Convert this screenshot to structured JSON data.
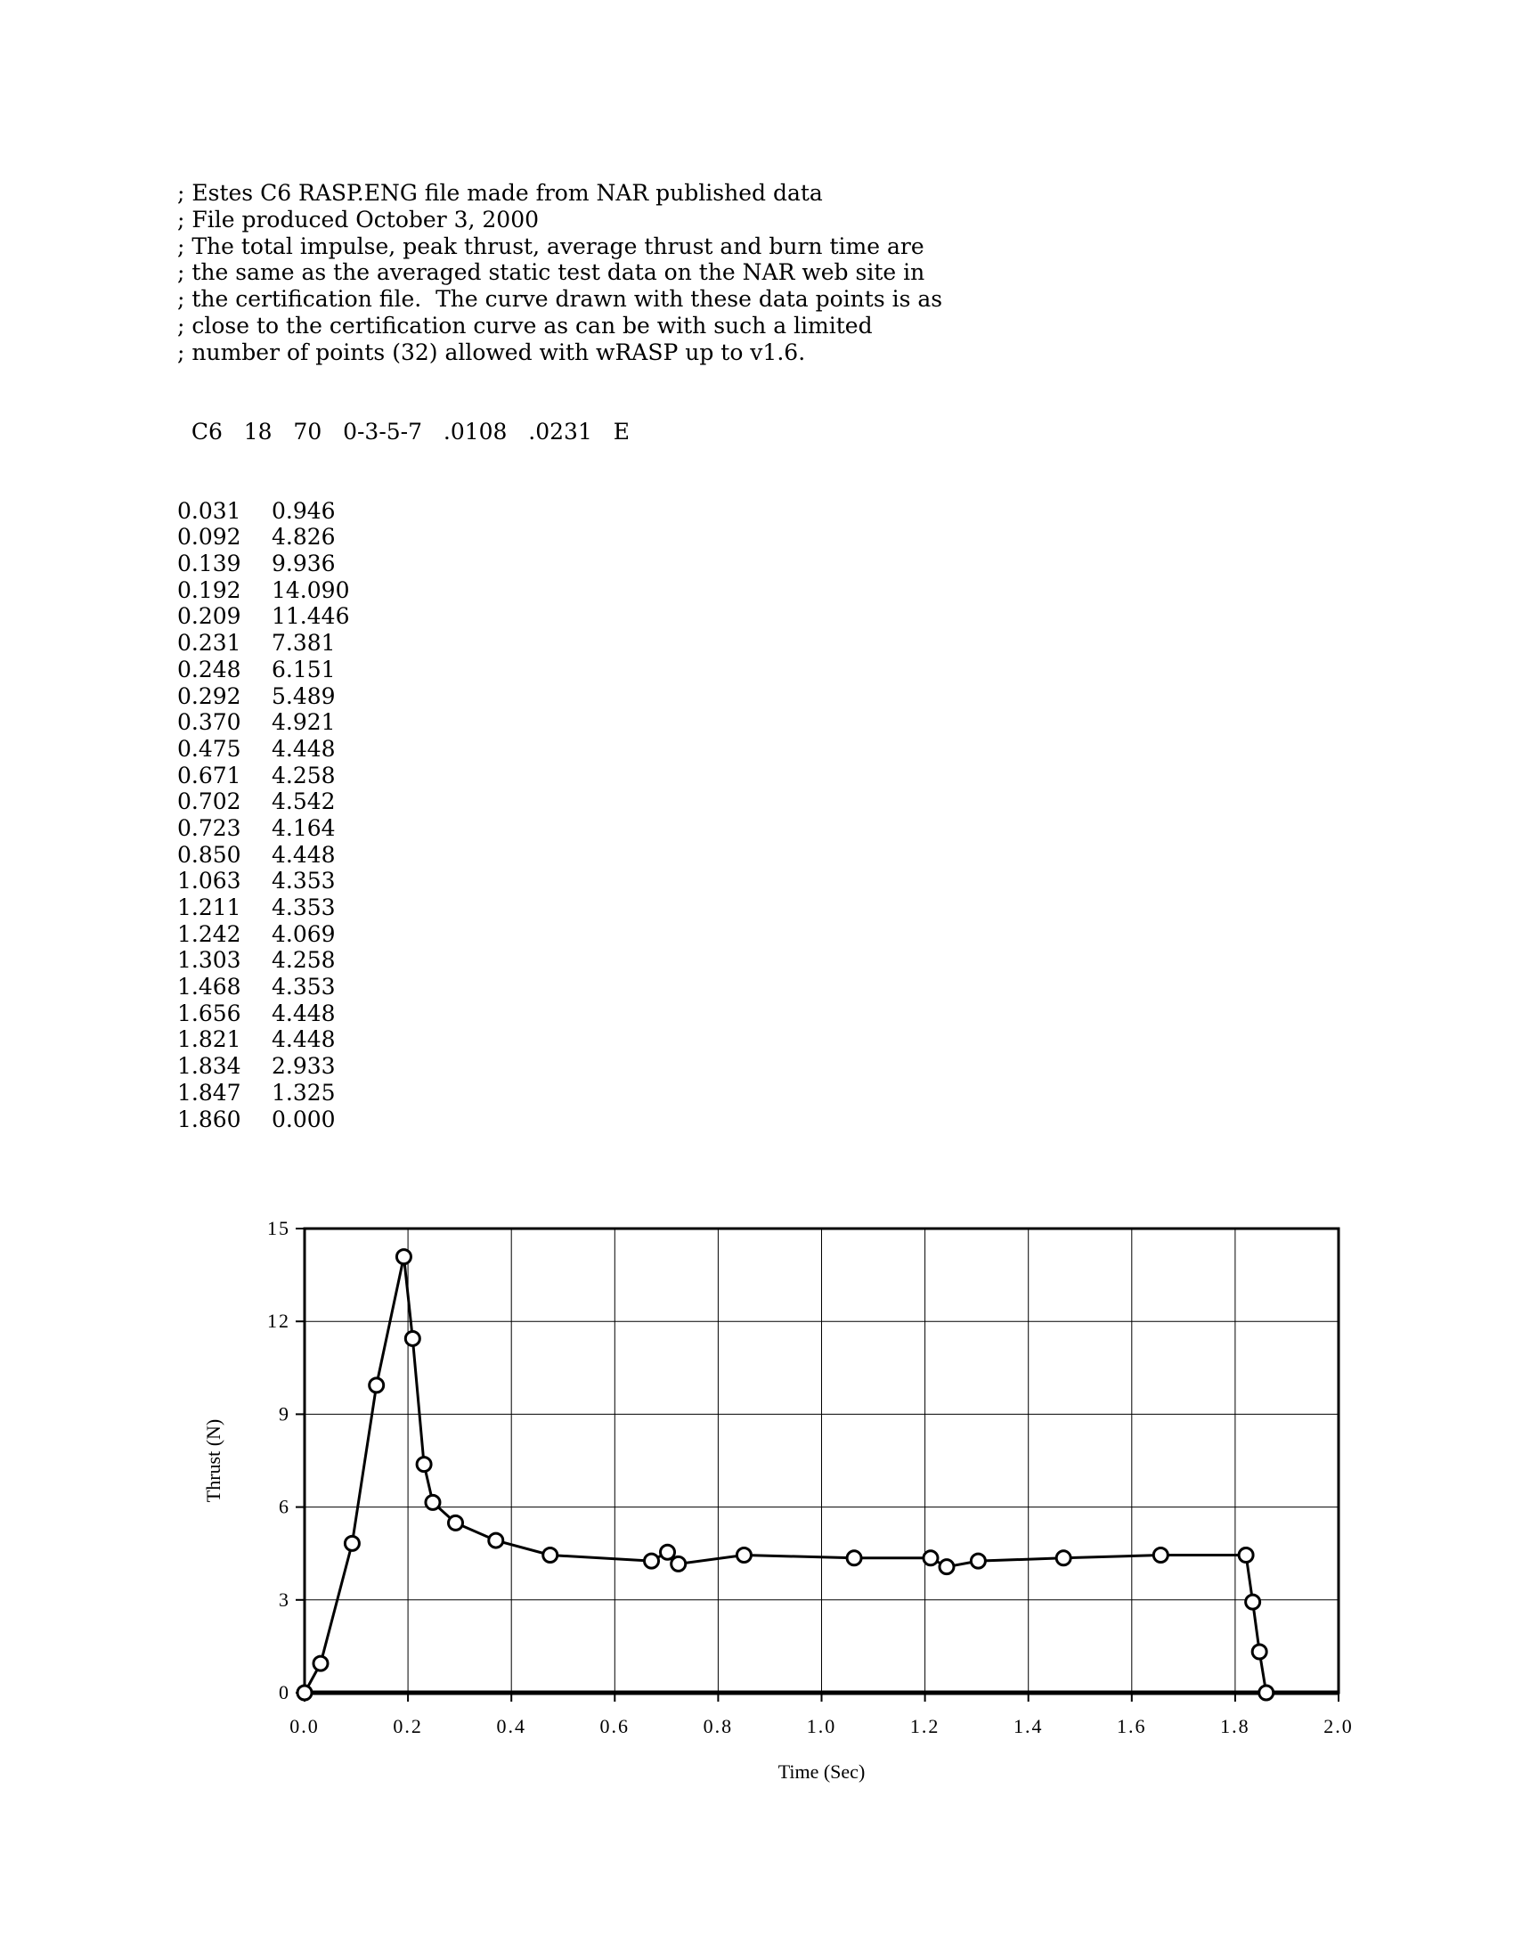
{
  "header_lines": [
    "; Estes C6 RASP.ENG file made from NAR published data",
    "; File produced October 3, 2000",
    "; The total impulse, peak thrust, average thrust and burn time are",
    "; the same as the averaged static test data on the NAR web site in",
    "; the certification file.  The curve drawn with these data points is as",
    "; close to the certification curve as can be with such a limited",
    "; number of points (32) allowed with wRASP up to v1.6."
  ],
  "engine_line": "  C6   18   70   0-3-5-7   .0108   .0231   E",
  "data_rows": [
    [
      "0.031",
      "0.946"
    ],
    [
      "0.092",
      "4.826"
    ],
    [
      "0.139",
      "9.936"
    ],
    [
      "0.192",
      "14.090"
    ],
    [
      "0.209",
      "11.446"
    ],
    [
      "0.231",
      "7.381"
    ],
    [
      "0.248",
      "6.151"
    ],
    [
      "0.292",
      "5.489"
    ],
    [
      "0.370",
      "4.921"
    ],
    [
      "0.475",
      "4.448"
    ],
    [
      "0.671",
      "4.258"
    ],
    [
      "0.702",
      "4.542"
    ],
    [
      "0.723",
      "4.164"
    ],
    [
      "0.850",
      "4.448"
    ],
    [
      "1.063",
      "4.353"
    ],
    [
      "1.211",
      "4.353"
    ],
    [
      "1.242",
      "4.069"
    ],
    [
      "1.303",
      "4.258"
    ],
    [
      "1.468",
      "4.353"
    ],
    [
      "1.656",
      "4.448"
    ],
    [
      "1.821",
      "4.448"
    ],
    [
      "1.834",
      "2.933"
    ],
    [
      "1.847",
      "1.325"
    ],
    [
      "1.860",
      "0.000"
    ]
  ],
  "chart_data": {
    "type": "line",
    "xlabel": "Time (Sec)",
    "ylabel": "Thrust (N)",
    "xlim": [
      0,
      2.0
    ],
    "ylim": [
      0,
      15
    ],
    "xticks": [
      "0.0",
      "0.2",
      "0.4",
      "0.6",
      "0.8",
      "1.0",
      "1.2",
      "1.4",
      "1.6",
      "1.8",
      "2.0"
    ],
    "yticks": [
      "0",
      "3",
      "6",
      "9",
      "12",
      "15"
    ],
    "grid": true,
    "markers": "open-circle",
    "line_color": "#000000",
    "x": [
      0,
      0.031,
      0.092,
      0.139,
      0.192,
      0.209,
      0.231,
      0.248,
      0.292,
      0.37,
      0.475,
      0.671,
      0.702,
      0.723,
      0.85,
      1.063,
      1.211,
      1.242,
      1.303,
      1.468,
      1.656,
      1.821,
      1.834,
      1.847,
      1.86
    ],
    "y": [
      0,
      0.946,
      4.826,
      9.936,
      14.09,
      11.446,
      7.381,
      6.151,
      5.489,
      4.921,
      4.448,
      4.258,
      4.542,
      4.164,
      4.448,
      4.353,
      4.353,
      4.069,
      4.258,
      4.353,
      4.448,
      4.448,
      2.933,
      1.325,
      0.0
    ]
  }
}
